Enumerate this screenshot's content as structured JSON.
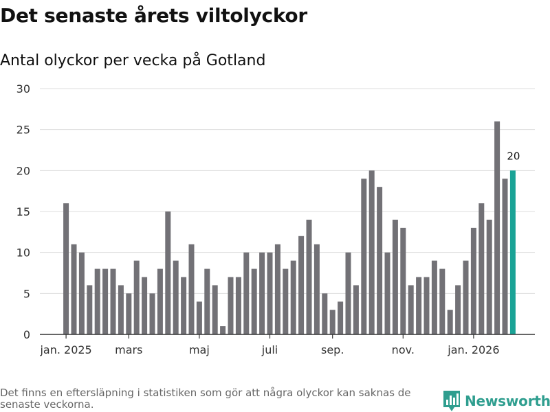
{
  "title": "Det senaste årets viltolyckor",
  "subtitle": "Antal olyckor per vecka på Gotland",
  "footnote": "Det finns en eftersläpning i statistiken som gör att några olyckor kan saknas de senaste veckorna.",
  "brand": "Newsworthy",
  "colors": {
    "bar": "#727176",
    "highlight": "#1aa396",
    "grid": "#dddddd",
    "axis": "#333333",
    "brand": "#2f9e8f"
  },
  "chart_data": {
    "type": "bar",
    "title": "Det senaste årets viltolyckor",
    "subtitle": "Antal olyckor per vecka på Gotland",
    "xlabel": "",
    "ylabel": "",
    "ylim": [
      0,
      30
    ],
    "yticks": [
      0,
      5,
      10,
      15,
      20,
      25,
      30
    ],
    "grid": true,
    "values": [
      16,
      11,
      10,
      6,
      8,
      8,
      8,
      6,
      5,
      9,
      7,
      5,
      8,
      15,
      9,
      7,
      11,
      4,
      8,
      6,
      1,
      7,
      7,
      10,
      8,
      10,
      10,
      11,
      8,
      9,
      12,
      14,
      11,
      5,
      3,
      4,
      10,
      6,
      19,
      20,
      18,
      10,
      14,
      13,
      6,
      7,
      7,
      9,
      8,
      3,
      6,
      9,
      13,
      16,
      14,
      26,
      19,
      20
    ],
    "x_ticks": [
      {
        "label": "jan. 2025",
        "index": 0
      },
      {
        "label": "mars",
        "index": 8
      },
      {
        "label": "maj",
        "index": 17
      },
      {
        "label": "juli",
        "index": 26
      },
      {
        "label": "sep.",
        "index": 34
      },
      {
        "label": "nov.",
        "index": 43
      },
      {
        "label": "jan. 2026",
        "index": 52
      }
    ],
    "highlight_index": 57,
    "highlight_label": "20"
  }
}
